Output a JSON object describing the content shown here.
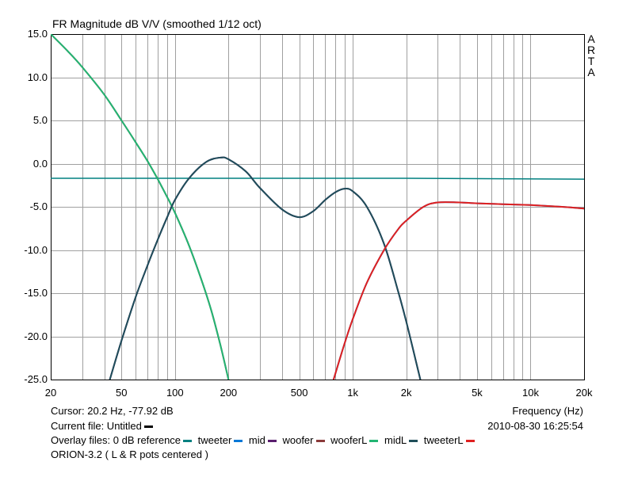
{
  "title": "FR Magnitude dB V/V (smoothed 1/12 oct)",
  "watermark": [
    "A",
    "R",
    "T",
    "A"
  ],
  "cursor_readout": "Cursor: 20.2 Hz, -77.92 dB",
  "current_file_label": "Current file: Untitled",
  "current_file_color": "#000000",
  "timestamp": "2010-08-30  16:25:54",
  "overlay_label": "Overlay files:",
  "overlays": [
    {
      "name": "0 dB reference",
      "color": "#008080"
    },
    {
      "name": "tweeter",
      "color": "#0078D7"
    },
    {
      "name": "mid",
      "color": "#5A1E6E"
    },
    {
      "name": "woofer",
      "color": "#8B3A3A"
    },
    {
      "name": "wooferL",
      "color": "#22B573"
    },
    {
      "name": "midL",
      "color": "#1F4E5A"
    },
    {
      "name": "tweeterL",
      "color": "#E02020"
    }
  ],
  "note": "ORION-3.2  ( L & R pots centered )",
  "chart_data": {
    "type": "line",
    "title": "FR Magnitude dB V/V (smoothed 1/12 oct)",
    "xlabel": "Frequency (Hz)",
    "ylabel": "",
    "x_scale": "log",
    "xlim": [
      20,
      20000
    ],
    "ylim": [
      -25,
      15
    ],
    "grid": true,
    "x_ticks": [
      {
        "value": 20,
        "label": "20"
      },
      {
        "value": 50,
        "label": "50"
      },
      {
        "value": 100,
        "label": "100"
      },
      {
        "value": 200,
        "label": "200"
      },
      {
        "value": 500,
        "label": "500"
      },
      {
        "value": 1000,
        "label": "1k"
      },
      {
        "value": 2000,
        "label": "2k"
      },
      {
        "value": 5000,
        "label": "5k"
      },
      {
        "value": 10000,
        "label": "10k"
      },
      {
        "value": 20000,
        "label": "20k"
      }
    ],
    "y_ticks": [
      {
        "value": 15,
        "label": "15.0"
      },
      {
        "value": 10,
        "label": "10.0"
      },
      {
        "value": 5,
        "label": "5.0"
      },
      {
        "value": 0,
        "label": "0.0"
      },
      {
        "value": -5,
        "label": "-5.0"
      },
      {
        "value": -10,
        "label": "-10.0"
      },
      {
        "value": -15,
        "label": "-15.0"
      },
      {
        "value": -20,
        "label": "-20.0"
      },
      {
        "value": -25,
        "label": "-25.0"
      }
    ],
    "series": [
      {
        "name": "0 dB reference",
        "color": "#008080",
        "x": [
          20,
          2000,
          20000
        ],
        "y": [
          -1.7,
          -1.7,
          -1.8
        ]
      },
      {
        "name": "woofer",
        "color": "#8B3A3A",
        "x": [
          20,
          25,
          30,
          40,
          50,
          60,
          70,
          80,
          90,
          100,
          120,
          140,
          160,
          180,
          200
        ],
        "y": [
          15.0,
          13.0,
          11.2,
          8.0,
          5.0,
          2.5,
          0.3,
          -1.8,
          -3.8,
          -5.7,
          -9.5,
          -13.3,
          -17.0,
          -21.0,
          -25.0
        ]
      },
      {
        "name": "wooferL",
        "color": "#22B573",
        "x": [
          20,
          25,
          30,
          40,
          50,
          60,
          70,
          80,
          90,
          100,
          120,
          140,
          160,
          180,
          200
        ],
        "y": [
          15.0,
          13.0,
          11.2,
          8.0,
          5.0,
          2.5,
          0.3,
          -1.8,
          -3.8,
          -5.7,
          -9.5,
          -13.3,
          -17.0,
          -21.0,
          -25.0
        ]
      },
      {
        "name": "mid",
        "color": "#5A1E6E",
        "x": [
          43,
          50,
          60,
          70,
          80,
          90,
          100,
          120,
          150,
          180,
          200,
          250,
          300,
          400,
          500,
          600,
          700,
          800,
          900,
          1000,
          1200,
          1500,
          1800,
          2000,
          2200,
          2400
        ],
        "y": [
          -25.0,
          -20.5,
          -15.5,
          -11.8,
          -8.8,
          -6.3,
          -4.2,
          -1.7,
          0.2,
          0.7,
          0.5,
          -0.9,
          -2.8,
          -5.3,
          -6.2,
          -5.5,
          -4.2,
          -3.3,
          -2.9,
          -3.2,
          -5.0,
          -9.3,
          -14.8,
          -18.3,
          -21.8,
          -25.0
        ]
      },
      {
        "name": "midL",
        "color": "#1F4E5A",
        "x": [
          43,
          50,
          60,
          70,
          80,
          90,
          100,
          120,
          150,
          180,
          200,
          250,
          300,
          400,
          500,
          600,
          700,
          800,
          900,
          1000,
          1200,
          1500,
          1800,
          2000,
          2200,
          2400
        ],
        "y": [
          -25.0,
          -20.5,
          -15.5,
          -11.8,
          -8.8,
          -6.3,
          -4.2,
          -1.7,
          0.2,
          0.7,
          0.5,
          -0.9,
          -2.8,
          -5.3,
          -6.2,
          -5.5,
          -4.2,
          -3.3,
          -2.9,
          -3.2,
          -5.0,
          -9.3,
          -14.8,
          -18.3,
          -21.8,
          -25.0
        ]
      },
      {
        "name": "tweeter",
        "color": "#0078D7",
        "x": [
          780,
          900,
          1000,
          1200,
          1500,
          1800,
          2000,
          2500,
          3000,
          4000,
          5000,
          7000,
          10000,
          15000,
          20000
        ],
        "y": [
          -25.0,
          -20.8,
          -18.0,
          -13.8,
          -10.0,
          -7.6,
          -6.6,
          -5.0,
          -4.5,
          -4.5,
          -4.6,
          -4.7,
          -4.8,
          -5.0,
          -5.2
        ]
      },
      {
        "name": "tweeterL",
        "color": "#E02020",
        "x": [
          780,
          900,
          1000,
          1200,
          1500,
          1800,
          2000,
          2500,
          3000,
          4000,
          5000,
          7000,
          10000,
          15000,
          20000
        ],
        "y": [
          -25.0,
          -20.8,
          -18.0,
          -13.8,
          -10.0,
          -7.6,
          -6.6,
          -5.0,
          -4.5,
          -4.5,
          -4.6,
          -4.7,
          -4.8,
          -5.0,
          -5.2
        ]
      }
    ]
  }
}
